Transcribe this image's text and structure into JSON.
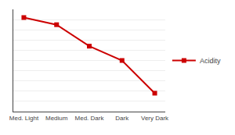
{
  "chart_data": {
    "type": "line",
    "categories": [
      "Med. Light",
      "Medium",
      "Med. Dark",
      "Dark",
      "Very Dark"
    ],
    "series": [
      {
        "name": "Acidity",
        "color": "#cc0000",
        "marker": "square",
        "values": [
          9.2,
          8.5,
          6.4,
          5.0,
          1.8
        ]
      }
    ],
    "ylim": [
      0,
      10
    ],
    "yticks": [
      0,
      1,
      2,
      3,
      4,
      5,
      6,
      7,
      8,
      9,
      10
    ],
    "grid": true,
    "legend": "right",
    "tick_labels": "x"
  }
}
